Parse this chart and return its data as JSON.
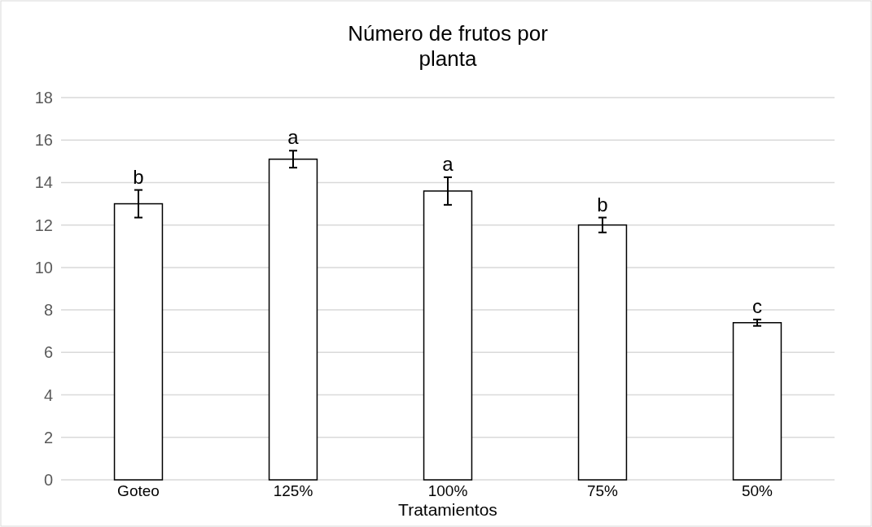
{
  "chart_data": {
    "type": "bar",
    "title": "Número de frutos por planta",
    "xlabel": "Tratamientos",
    "categories": [
      "Goteo",
      "125%",
      "100%",
      "75%",
      "50%"
    ],
    "values": [
      13.0,
      15.1,
      13.6,
      12.0,
      7.4
    ],
    "errors": [
      0.65,
      0.4,
      0.65,
      0.35,
      0.15
    ],
    "color": "#ffffff",
    "ylim": [
      0,
      18
    ],
    "yticks": [
      0,
      2,
      4,
      6,
      8,
      10,
      12,
      14,
      16,
      18
    ],
    "grid": "y",
    "annotations": [
      {
        "text": "b",
        "x": "Goteo",
        "y": 13.65
      },
      {
        "text": "a",
        "x": "125%",
        "y": 15.5
      },
      {
        "text": "a",
        "x": "100%",
        "y": 14.25
      },
      {
        "text": "b",
        "x": "75%",
        "y": 12.35
      },
      {
        "text": "c",
        "x": "50%",
        "y": 7.55
      }
    ]
  }
}
